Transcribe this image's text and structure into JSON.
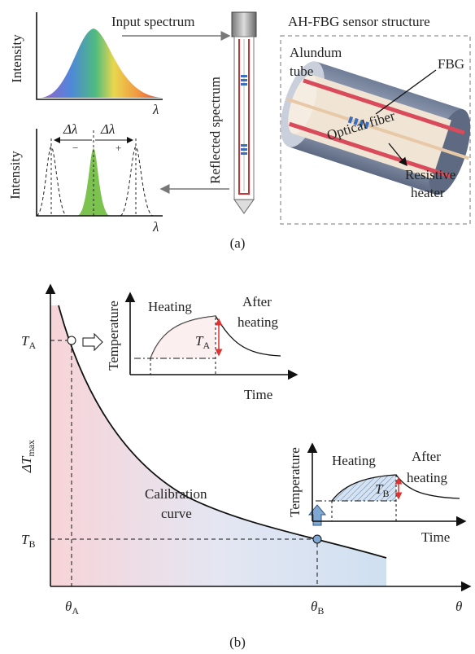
{
  "panel_a": {
    "input_plot": {
      "y_label": "Intensity",
      "x_label": "λ"
    },
    "input_arrow_label": "Input spectrum",
    "reflected_arrow_label": "Reflected spectrum",
    "reflected_plot": {
      "y_label": "Intensity",
      "x_label": "λ",
      "shift_left": {
        "symbol": "Δλ",
        "sign": "−"
      },
      "shift_right": {
        "symbol": "Δλ",
        "sign": "+"
      }
    },
    "structure": {
      "title": "AH-FBG sensor structure",
      "tube": [
        "Alundum",
        "tube"
      ],
      "fbg": "FBG",
      "fiber": "Optical fiber",
      "heater": [
        "Resistive",
        "heater"
      ]
    },
    "caption": "(a)"
  },
  "panel_b": {
    "y_ticks": [
      {
        "main": "T",
        "sub": "A"
      },
      {
        "main": "T",
        "sub": "B"
      }
    ],
    "y_label": {
      "main": "ΔT",
      "sub": "max"
    },
    "x_ticks": [
      {
        "main": "θ",
        "sub": "A"
      },
      {
        "main": "θ",
        "sub": "B"
      }
    ],
    "x_label": "θ",
    "curve_label": [
      "Calibration",
      "curve"
    ],
    "insets": [
      {
        "y_label": "Temperature",
        "x_label": "Time",
        "phase_1": "Heating",
        "phase_2": [
          "After",
          "heating"
        ],
        "marker": {
          "main": "T",
          "sub": "A"
        }
      },
      {
        "y_label": "Temperature",
        "x_label": "Time",
        "phase_1": "Heating",
        "phase_2": [
          "After",
          "heating"
        ],
        "marker": {
          "main": "T",
          "sub": "B"
        }
      }
    ],
    "caption": "(b)"
  }
}
